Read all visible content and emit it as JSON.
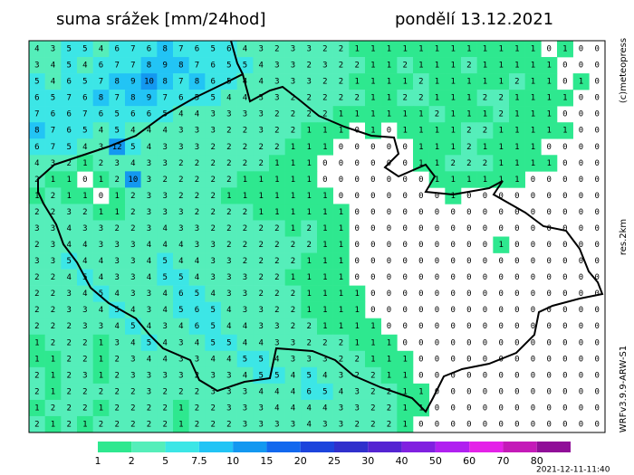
{
  "map": {
    "title": "suma srážek [mm/24hod]",
    "date": "pondělí 13.12.2021",
    "copyright": "(c)meteopress",
    "resolution": "res.2km",
    "model": "WRFv3.9.9-ARW-S1",
    "timestamp": "2021-12-11-11:40",
    "legend": {
      "levels": [
        1,
        2,
        5,
        7.5,
        10,
        15,
        20,
        25,
        30,
        40,
        50,
        60,
        70,
        80
      ],
      "colors": [
        "#2ee88f",
        "#55eeba",
        "#3ce6e6",
        "#22c4f5",
        "#1398f0",
        "#1268ee",
        "#1c44dc",
        "#3030cc",
        "#5424d2",
        "#8020e0",
        "#b020f0",
        "#e422e8",
        "#c41ab8",
        "#900e98"
      ]
    },
    "grid": [
      [
        4,
        3,
        5,
        5,
        4,
        6,
        7,
        6,
        8,
        7,
        6,
        5,
        6,
        4,
        3,
        2,
        3,
        3,
        2,
        2,
        1,
        1,
        1,
        1,
        1,
        1,
        1,
        1,
        1,
        1,
        1,
        1,
        0,
        1,
        0,
        0
      ],
      [
        3,
        4,
        5,
        4,
        6,
        7,
        7,
        8,
        9,
        8,
        7,
        6,
        5,
        5,
        4,
        3,
        3,
        2,
        3,
        2,
        2,
        1,
        1,
        2,
        1,
        1,
        1,
        2,
        1,
        1,
        1,
        1,
        1,
        0,
        0,
        0
      ],
      [
        5,
        4,
        6,
        5,
        7,
        8,
        9,
        10,
        8,
        7,
        8,
        6,
        5,
        4,
        4,
        3,
        3,
        3,
        2,
        2,
        1,
        1,
        1,
        1,
        2,
        1,
        1,
        1,
        1,
        1,
        2,
        1,
        1,
        0,
        1,
        0
      ],
      [
        6,
        5,
        7,
        6,
        8,
        7,
        8,
        9,
        7,
        6,
        5,
        5,
        4,
        4,
        3,
        3,
        2,
        2,
        2,
        2,
        2,
        1,
        1,
        2,
        2,
        1,
        1,
        1,
        2,
        2,
        1,
        1,
        1,
        1,
        0,
        0
      ],
      [
        7,
        6,
        6,
        7,
        6,
        5,
        6,
        6,
        5,
        4,
        4,
        3,
        3,
        3,
        3,
        2,
        2,
        2,
        2,
        1,
        1,
        1,
        1,
        1,
        1,
        2,
        1,
        1,
        1,
        2,
        1,
        1,
        1,
        0,
        0,
        0
      ],
      [
        8,
        7,
        6,
        5,
        4,
        5,
        4,
        4,
        4,
        3,
        3,
        3,
        2,
        2,
        3,
        2,
        2,
        1,
        1,
        1,
        0,
        1,
        0,
        1,
        1,
        1,
        1,
        2,
        2,
        1,
        1,
        1,
        1,
        1,
        0,
        0
      ],
      [
        6,
        7,
        5,
        4,
        3,
        12,
        5,
        4,
        3,
        3,
        3,
        2,
        2,
        2,
        2,
        2,
        1,
        1,
        1,
        0,
        0,
        0,
        0,
        0,
        1,
        1,
        1,
        2,
        1,
        1,
        1,
        1,
        0,
        0,
        0,
        0
      ],
      [
        4,
        3,
        2,
        1,
        2,
        3,
        4,
        3,
        3,
        2,
        2,
        2,
        2,
        2,
        2,
        1,
        1,
        1,
        0,
        0,
        0,
        0,
        0,
        0,
        1,
        1,
        2,
        2,
        2,
        1,
        1,
        1,
        1,
        0,
        0,
        0
      ],
      [
        2,
        1,
        1,
        0,
        1,
        2,
        10,
        3,
        2,
        2,
        2,
        2,
        2,
        1,
        1,
        1,
        1,
        1,
        0,
        0,
        0,
        0,
        0,
        0,
        0,
        1,
        1,
        1,
        1,
        1,
        1,
        0,
        0,
        0,
        0,
        0
      ],
      [
        1,
        2,
        1,
        1,
        0,
        1,
        2,
        3,
        3,
        2,
        2,
        2,
        1,
        1,
        1,
        1,
        1,
        1,
        1,
        0,
        0,
        0,
        0,
        0,
        0,
        0,
        1,
        0,
        0,
        0,
        0,
        0,
        0,
        0,
        0,
        0
      ],
      [
        2,
        2,
        3,
        2,
        1,
        1,
        2,
        3,
        3,
        3,
        2,
        2,
        2,
        2,
        1,
        1,
        1,
        1,
        1,
        1,
        0,
        0,
        0,
        0,
        0,
        0,
        0,
        0,
        0,
        0,
        0,
        0,
        0,
        0,
        0,
        0
      ],
      [
        3,
        3,
        4,
        3,
        3,
        2,
        2,
        3,
        4,
        3,
        3,
        2,
        2,
        2,
        2,
        2,
        1,
        2,
        1,
        1,
        0,
        0,
        0,
        0,
        0,
        0,
        0,
        0,
        0,
        0,
        0,
        0,
        0,
        0,
        0,
        0
      ],
      [
        2,
        3,
        4,
        4,
        3,
        3,
        3,
        4,
        4,
        4,
        3,
        3,
        2,
        2,
        2,
        2,
        2,
        2,
        1,
        1,
        0,
        0,
        0,
        0,
        0,
        0,
        0,
        0,
        0,
        1,
        0,
        0,
        0,
        0,
        0,
        0
      ],
      [
        3,
        3,
        5,
        4,
        4,
        3,
        3,
        4,
        5,
        4,
        4,
        3,
        3,
        2,
        2,
        2,
        2,
        1,
        1,
        1,
        0,
        0,
        0,
        0,
        0,
        0,
        0,
        0,
        0,
        0,
        0,
        0,
        0,
        0,
        0,
        0
      ],
      [
        2,
        2,
        4,
        5,
        4,
        3,
        3,
        4,
        5,
        5,
        4,
        3,
        3,
        3,
        2,
        2,
        1,
        1,
        1,
        1,
        0,
        0,
        0,
        0,
        0,
        0,
        0,
        0,
        0,
        0,
        0,
        0,
        0,
        0,
        0,
        0
      ],
      [
        2,
        2,
        3,
        4,
        5,
        4,
        3,
        3,
        4,
        6,
        5,
        4,
        3,
        3,
        2,
        2,
        2,
        1,
        1,
        1,
        1,
        0,
        0,
        0,
        0,
        0,
        0,
        0,
        0,
        0,
        0,
        0,
        0,
        0,
        0,
        0
      ],
      [
        2,
        2,
        3,
        3,
        4,
        5,
        4,
        3,
        4,
        5,
        6,
        5,
        4,
        3,
        3,
        2,
        2,
        1,
        1,
        1,
        1,
        0,
        0,
        0,
        0,
        0,
        0,
        0,
        0,
        0,
        0,
        0,
        0,
        0,
        0,
        0
      ],
      [
        2,
        2,
        2,
        3,
        3,
        4,
        5,
        4,
        3,
        4,
        6,
        5,
        4,
        4,
        3,
        3,
        2,
        2,
        1,
        1,
        1,
        1,
        0,
        0,
        0,
        0,
        0,
        0,
        0,
        0,
        0,
        0,
        0,
        0,
        0,
        0
      ],
      [
        1,
        2,
        2,
        2,
        1,
        3,
        4,
        5,
        4,
        3,
        4,
        5,
        5,
        4,
        4,
        3,
        3,
        2,
        2,
        2,
        1,
        1,
        1,
        0,
        0,
        0,
        0,
        0,
        0,
        0,
        0,
        0,
        0,
        0,
        0,
        0
      ],
      [
        1,
        1,
        2,
        2,
        1,
        2,
        3,
        4,
        4,
        3,
        3,
        4,
        4,
        5,
        5,
        4,
        3,
        3,
        3,
        2,
        2,
        1,
        1,
        1,
        0,
        0,
        0,
        0,
        0,
        0,
        0,
        0,
        0,
        0,
        0,
        0
      ],
      [
        2,
        1,
        2,
        3,
        1,
        2,
        3,
        3,
        3,
        3,
        2,
        3,
        3,
        4,
        5,
        5,
        4,
        5,
        4,
        3,
        2,
        2,
        1,
        1,
        0,
        0,
        0,
        0,
        0,
        0,
        0,
        0,
        0,
        0,
        0,
        0
      ],
      [
        2,
        1,
        2,
        2,
        2,
        2,
        2,
        3,
        2,
        2,
        2,
        3,
        3,
        3,
        4,
        4,
        4,
        6,
        5,
        4,
        3,
        2,
        2,
        1,
        1,
        0,
        0,
        0,
        0,
        0,
        0,
        0,
        0,
        0,
        0,
        0
      ],
      [
        1,
        2,
        2,
        2,
        1,
        2,
        2,
        2,
        2,
        1,
        2,
        2,
        3,
        3,
        3,
        4,
        4,
        4,
        4,
        3,
        3,
        2,
        2,
        1,
        1,
        0,
        0,
        0,
        0,
        0,
        0,
        0,
        0,
        0,
        0,
        0
      ],
      [
        2,
        1,
        2,
        1,
        2,
        2,
        2,
        2,
        2,
        1,
        2,
        2,
        2,
        3,
        3,
        3,
        3,
        4,
        3,
        3,
        2,
        2,
        2,
        1,
        0,
        0,
        0,
        0,
        0,
        0,
        0,
        0,
        0,
        0,
        0,
        0
      ]
    ]
  }
}
